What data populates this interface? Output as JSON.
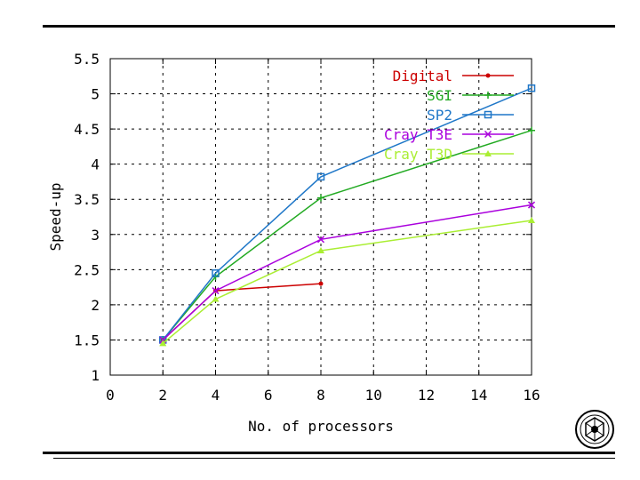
{
  "chart_data": {
    "type": "line",
    "xlabel": "No. of processors",
    "ylabel": "Speed-up",
    "xlim": [
      0,
      16
    ],
    "ylim": [
      1,
      5.5
    ],
    "x_ticks": [
      "0",
      "2",
      "4",
      "6",
      "8",
      "10",
      "12",
      "14",
      "16"
    ],
    "y_ticks": [
      "1",
      "1.5",
      "2",
      "2.5",
      "3",
      "3.5",
      "4",
      "4.5",
      "5",
      "5.5"
    ],
    "grid": true,
    "legend_position": "top-right",
    "series": [
      {
        "name": "Digital",
        "color": "#cc0000",
        "marker": "dot",
        "x": [
          2,
          4,
          8
        ],
        "y": [
          1.5,
          2.2,
          2.3
        ]
      },
      {
        "name": "SGI",
        "color": "#22aa22",
        "marker": "plus",
        "x": [
          2,
          4,
          8,
          16
        ],
        "y": [
          1.5,
          2.4,
          3.52,
          4.48
        ]
      },
      {
        "name": "SP2",
        "color": "#1f77c8",
        "marker": "square",
        "x": [
          2,
          4,
          8,
          16
        ],
        "y": [
          1.5,
          2.45,
          3.82,
          5.08
        ]
      },
      {
        "name": "Cray T3E",
        "color": "#aa00dd",
        "marker": "x",
        "x": [
          2,
          4,
          8,
          16
        ],
        "y": [
          1.5,
          2.2,
          2.93,
          3.42
        ]
      },
      {
        "name": "Cray T3D",
        "color": "#aaee33",
        "marker": "triangle",
        "x": [
          2,
          4,
          8,
          16
        ],
        "y": [
          1.45,
          2.08,
          2.77,
          3.2
        ]
      }
    ]
  }
}
